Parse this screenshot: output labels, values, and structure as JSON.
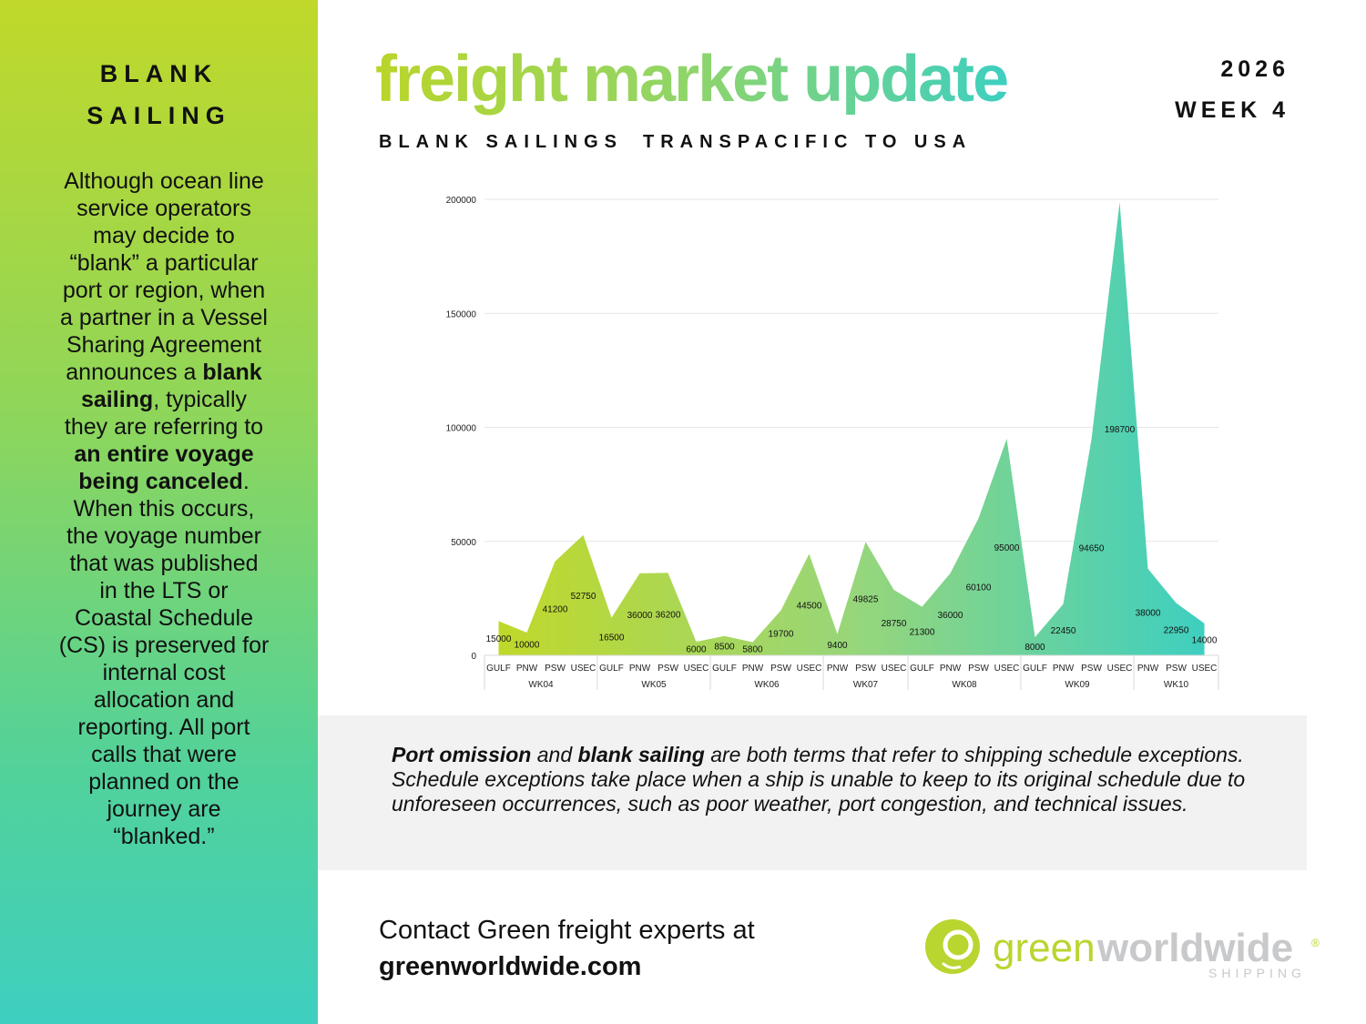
{
  "sidebar": {
    "title_lines": [
      "BLANK",
      "SAILING"
    ],
    "body": [
      {
        "text": "Although ocean line service operators may decide to “blank” a particular port or region, when a partner in a Vessel Sharing Agreement announces a ",
        "bold": false
      },
      {
        "text": "blank sailing",
        "bold": true
      },
      {
        "text": ", typically they are referring to ",
        "bold": false
      },
      {
        "text": "an entire voyage being canceled",
        "bold": true
      },
      {
        "text": ". When this occurs, the voyage number that was published in the LTS or Coastal Schedule (CS) is preserved for internal cost allocation and reporting. All port calls that were planned on the journey are “blanked.”",
        "bold": false
      }
    ]
  },
  "header": {
    "title": "freight market update",
    "year": "2026",
    "week": "WEEK 4",
    "subtitle_left": "BLANK SAILINGS",
    "subtitle_right": "TRANSPACIFIC TO USA"
  },
  "colors": {
    "gradient_start": "#c0d82a",
    "gradient_end": "#3ecfc0"
  },
  "chart_data": {
    "type": "area",
    "groups": [
      {
        "name": "WK04",
        "categories": [
          "GULF",
          "PNW",
          "PSW",
          "USEC"
        ],
        "values": [
          15000,
          10000,
          41200,
          52750
        ]
      },
      {
        "name": "WK05",
        "categories": [
          "GULF",
          "PNW",
          "PSW",
          "USEC"
        ],
        "values": [
          16500,
          36000,
          36200,
          6000
        ]
      },
      {
        "name": "WK06",
        "categories": [
          "GULF",
          "PNW",
          "PSW",
          "USEC"
        ],
        "values": [
          8500,
          5800,
          19700,
          44500
        ]
      },
      {
        "name": "WK07",
        "categories": [
          "PNW",
          "PSW",
          "USEC"
        ],
        "values": [
          9400,
          49825,
          28750
        ]
      },
      {
        "name": "WK08",
        "categories": [
          "GULF",
          "PNW",
          "PSW",
          "USEC"
        ],
        "values": [
          21300,
          36000,
          60100,
          95000
        ]
      },
      {
        "name": "WK09",
        "categories": [
          "GULF",
          "PNW",
          "PSW",
          "USEC"
        ],
        "values": [
          8000,
          22450,
          94650,
          198700
        ]
      },
      {
        "name": "WK10",
        "categories": [
          "PNW",
          "PSW",
          "USEC"
        ],
        "values": [
          38000,
          22950,
          14000
        ]
      }
    ],
    "ylim": [
      0,
      200000
    ],
    "yticks": [
      0,
      50000,
      100000,
      150000,
      200000
    ],
    "grid": true,
    "data_labels": true
  },
  "note": {
    "segments": [
      {
        "text": "Port omission",
        "bold": true
      },
      {
        "text": " and ",
        "bold": false
      },
      {
        "text": "blank sailing",
        "bold": true
      },
      {
        "text": " are both terms that refer to shipping schedule exceptions. Schedule exceptions take place when a ship is unable to keep to its original schedule due to unforeseen occurrences, such as poor weather, port congestion, and technical issues.",
        "bold": false
      }
    ]
  },
  "contact": {
    "line1": "Contact Green freight experts at",
    "link": "greenworldwide.com"
  },
  "logo": {
    "text_green": "green",
    "text_gray": "worldwide",
    "sub": "SHIPPING",
    "mark": "®"
  }
}
